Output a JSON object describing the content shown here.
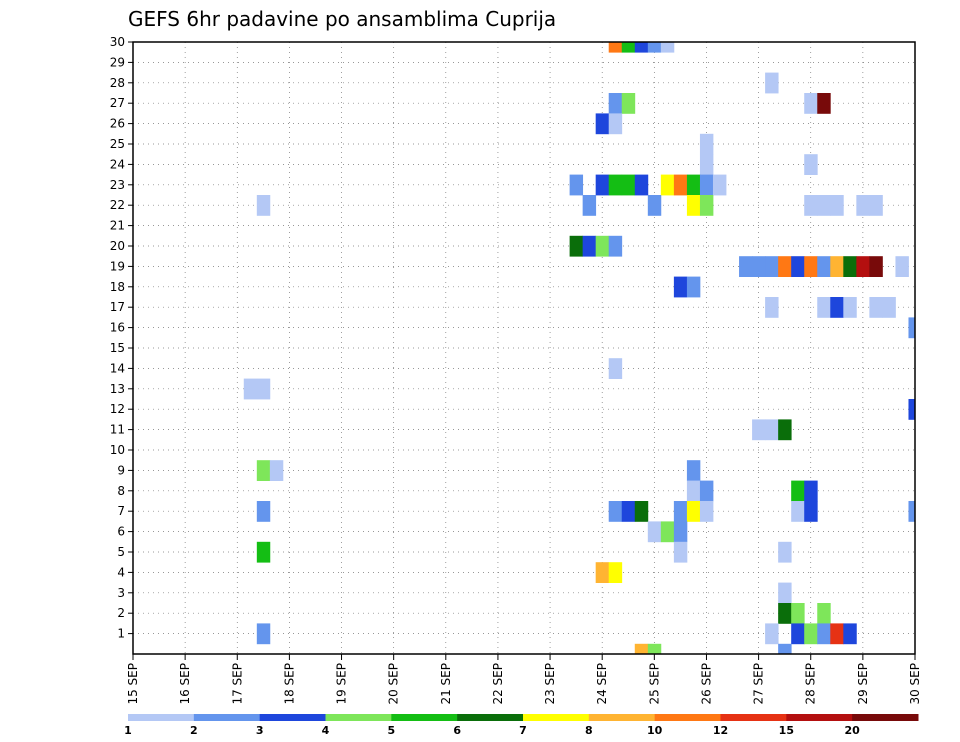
{
  "chart_data": {
    "type": "heatmap",
    "title": "GEFS 6hr padavine po ansamblima Cuprija",
    "x_tick_labels": [
      "15 SEP",
      "16 SEP",
      "17 SEP",
      "18 SEP",
      "19 SEP",
      "20 SEP",
      "21 SEP",
      "22 SEP",
      "23 SEP",
      "24 SEP",
      "25 SEP",
      "26 SEP",
      "27 SEP",
      "28 SEP",
      "29 SEP",
      "30 SEP"
    ],
    "y_tick_labels": [
      "1",
      "2",
      "3",
      "4",
      "5",
      "6",
      "7",
      "8",
      "9",
      "10",
      "11",
      "12",
      "13",
      "14",
      "15",
      "16",
      "17",
      "18",
      "19",
      "20",
      "21",
      "22",
      "23",
      "24",
      "25",
      "26",
      "27",
      "28",
      "29",
      "30"
    ],
    "xlim_days": [
      15,
      30
    ],
    "ylim_members": [
      0,
      30
    ],
    "grid": true,
    "legend": {
      "placement": "bottom",
      "labels": [
        "1",
        "2",
        "3",
        "4",
        "5",
        "6",
        "7",
        "8",
        "10",
        "12",
        "15",
        "20"
      ],
      "colors": [
        "#b4c8f5",
        "#6495ed",
        "#1e46dc",
        "#7ee65a",
        "#14be14",
        "#0a6e0a",
        "#ffff00",
        "#ffb432",
        "#ff7814",
        "#e63214",
        "#b40f0f",
        "#780a0a"
      ]
    },
    "cells": [
      {
        "m": 30,
        "t": 24.25,
        "v": 10
      },
      {
        "m": 30,
        "t": 24.5,
        "v": 5
      },
      {
        "m": 30,
        "t": 24.75,
        "v": 3
      },
      {
        "m": 30,
        "t": 25.0,
        "v": 2
      },
      {
        "m": 30,
        "t": 25.25,
        "v": 1
      },
      {
        "m": 28,
        "t": 27.25,
        "v": 1
      },
      {
        "m": 27,
        "t": 24.25,
        "v": 2
      },
      {
        "m": 27,
        "t": 24.5,
        "v": 4
      },
      {
        "m": 27,
        "t": 28.0,
        "v": 1
      },
      {
        "m": 27,
        "t": 28.25,
        "v": 20
      },
      {
        "m": 26,
        "t": 24.0,
        "v": 3
      },
      {
        "m": 26,
        "t": 24.25,
        "v": 1
      },
      {
        "m": 25,
        "t": 26.0,
        "v": 1
      },
      {
        "m": 24,
        "t": 26.0,
        "v": 1
      },
      {
        "m": 24,
        "t": 28.0,
        "v": 1
      },
      {
        "m": 23,
        "t": 23.5,
        "v": 2
      },
      {
        "m": 23,
        "t": 24.0,
        "v": 3
      },
      {
        "m": 23,
        "t": 24.25,
        "v": 5
      },
      {
        "m": 23,
        "t": 24.5,
        "v": 5
      },
      {
        "m": 23,
        "t": 24.75,
        "v": 3
      },
      {
        "m": 23,
        "t": 25.25,
        "v": 7
      },
      {
        "m": 23,
        "t": 25.5,
        "v": 10
      },
      {
        "m": 23,
        "t": 25.75,
        "v": 5
      },
      {
        "m": 23,
        "t": 26.0,
        "v": 2
      },
      {
        "m": 23,
        "t": 26.25,
        "v": 1
      },
      {
        "m": 22,
        "t": 17.5,
        "v": 1
      },
      {
        "m": 22,
        "t": 23.75,
        "v": 2
      },
      {
        "m": 22,
        "t": 25.0,
        "v": 2
      },
      {
        "m": 22,
        "t": 25.75,
        "v": 7
      },
      {
        "m": 22,
        "t": 26.0,
        "v": 4
      },
      {
        "m": 22,
        "t": 28.0,
        "v": 1
      },
      {
        "m": 22,
        "t": 28.25,
        "v": 1
      },
      {
        "m": 22,
        "t": 28.5,
        "v": 1
      },
      {
        "m": 22,
        "t": 29.0,
        "v": 1
      },
      {
        "m": 22,
        "t": 29.25,
        "v": 1
      },
      {
        "m": 20,
        "t": 23.5,
        "v": 6
      },
      {
        "m": 20,
        "t": 23.75,
        "v": 3
      },
      {
        "m": 20,
        "t": 24.0,
        "v": 4
      },
      {
        "m": 20,
        "t": 24.25,
        "v": 2
      },
      {
        "m": 19,
        "t": 26.75,
        "v": 2
      },
      {
        "m": 19,
        "t": 27.0,
        "v": 2
      },
      {
        "m": 19,
        "t": 27.25,
        "v": 2
      },
      {
        "m": 19,
        "t": 27.5,
        "v": 10
      },
      {
        "m": 19,
        "t": 27.75,
        "v": 3
      },
      {
        "m": 19,
        "t": 28.0,
        "v": 10
      },
      {
        "m": 19,
        "t": 28.25,
        "v": 2
      },
      {
        "m": 19,
        "t": 28.5,
        "v": 8
      },
      {
        "m": 19,
        "t": 28.75,
        "v": 6
      },
      {
        "m": 19,
        "t": 29.0,
        "v": 15
      },
      {
        "m": 19,
        "t": 29.25,
        "v": 20
      },
      {
        "m": 19,
        "t": 29.75,
        "v": 1
      },
      {
        "m": 18,
        "t": 25.5,
        "v": 3
      },
      {
        "m": 18,
        "t": 25.75,
        "v": 2
      },
      {
        "m": 17,
        "t": 27.25,
        "v": 1
      },
      {
        "m": 17,
        "t": 28.25,
        "v": 1
      },
      {
        "m": 17,
        "t": 28.5,
        "v": 3
      },
      {
        "m": 17,
        "t": 28.75,
        "v": 1
      },
      {
        "m": 17,
        "t": 29.25,
        "v": 1
      },
      {
        "m": 17,
        "t": 29.5,
        "v": 1
      },
      {
        "m": 16,
        "t": 30.0,
        "v": 2
      },
      {
        "m": 14,
        "t": 24.25,
        "v": 1
      },
      {
        "m": 13,
        "t": 17.25,
        "v": 1
      },
      {
        "m": 13,
        "t": 17.5,
        "v": 1
      },
      {
        "m": 12,
        "t": 30.0,
        "v": 3
      },
      {
        "m": 11,
        "t": 27.0,
        "v": 1
      },
      {
        "m": 11,
        "t": 27.25,
        "v": 1
      },
      {
        "m": 11,
        "t": 27.5,
        "v": 6
      },
      {
        "m": 9,
        "t": 17.5,
        "v": 4
      },
      {
        "m": 9,
        "t": 17.75,
        "v": 1
      },
      {
        "m": 9,
        "t": 25.75,
        "v": 2
      },
      {
        "m": 8,
        "t": 25.75,
        "v": 1
      },
      {
        "m": 8,
        "t": 26.0,
        "v": 2
      },
      {
        "m": 8,
        "t": 27.75,
        "v": 5
      },
      {
        "m": 8,
        "t": 28.0,
        "v": 3
      },
      {
        "m": 7,
        "t": 17.5,
        "v": 2
      },
      {
        "m": 7,
        "t": 24.25,
        "v": 2
      },
      {
        "m": 7,
        "t": 24.5,
        "v": 3
      },
      {
        "m": 7,
        "t": 24.75,
        "v": 6
      },
      {
        "m": 7,
        "t": 25.5,
        "v": 2
      },
      {
        "m": 7,
        "t": 25.75,
        "v": 7
      },
      {
        "m": 7,
        "t": 26.0,
        "v": 1
      },
      {
        "m": 7,
        "t": 27.75,
        "v": 1
      },
      {
        "m": 7,
        "t": 28.0,
        "v": 3
      },
      {
        "m": 7,
        "t": 30.0,
        "v": 2
      },
      {
        "m": 6,
        "t": 25.0,
        "v": 1
      },
      {
        "m": 6,
        "t": 25.25,
        "v": 4
      },
      {
        "m": 6,
        "t": 25.5,
        "v": 2
      },
      {
        "m": 5,
        "t": 17.5,
        "v": 5
      },
      {
        "m": 5,
        "t": 25.5,
        "v": 1
      },
      {
        "m": 5,
        "t": 27.5,
        "v": 1
      },
      {
        "m": 4,
        "t": 24.0,
        "v": 8
      },
      {
        "m": 4,
        "t": 24.25,
        "v": 7
      },
      {
        "m": 3,
        "t": 27.5,
        "v": 1
      },
      {
        "m": 2,
        "t": 27.5,
        "v": 6
      },
      {
        "m": 2,
        "t": 27.75,
        "v": 4
      },
      {
        "m": 2,
        "t": 28.25,
        "v": 4
      },
      {
        "m": 1,
        "t": 17.5,
        "v": 2
      },
      {
        "m": 1,
        "t": 27.25,
        "v": 1
      },
      {
        "m": 1,
        "t": 27.75,
        "v": 3
      },
      {
        "m": 1,
        "t": 28.0,
        "v": 4
      },
      {
        "m": 1,
        "t": 28.25,
        "v": 2
      },
      {
        "m": 1,
        "t": 28.5,
        "v": 12
      },
      {
        "m": 1,
        "t": 28.75,
        "v": 3
      },
      {
        "m": 0,
        "t": 24.75,
        "v": 8
      },
      {
        "m": 0,
        "t": 25.0,
        "v": 4
      },
      {
        "m": 0,
        "t": 27.5,
        "v": 2
      }
    ]
  }
}
